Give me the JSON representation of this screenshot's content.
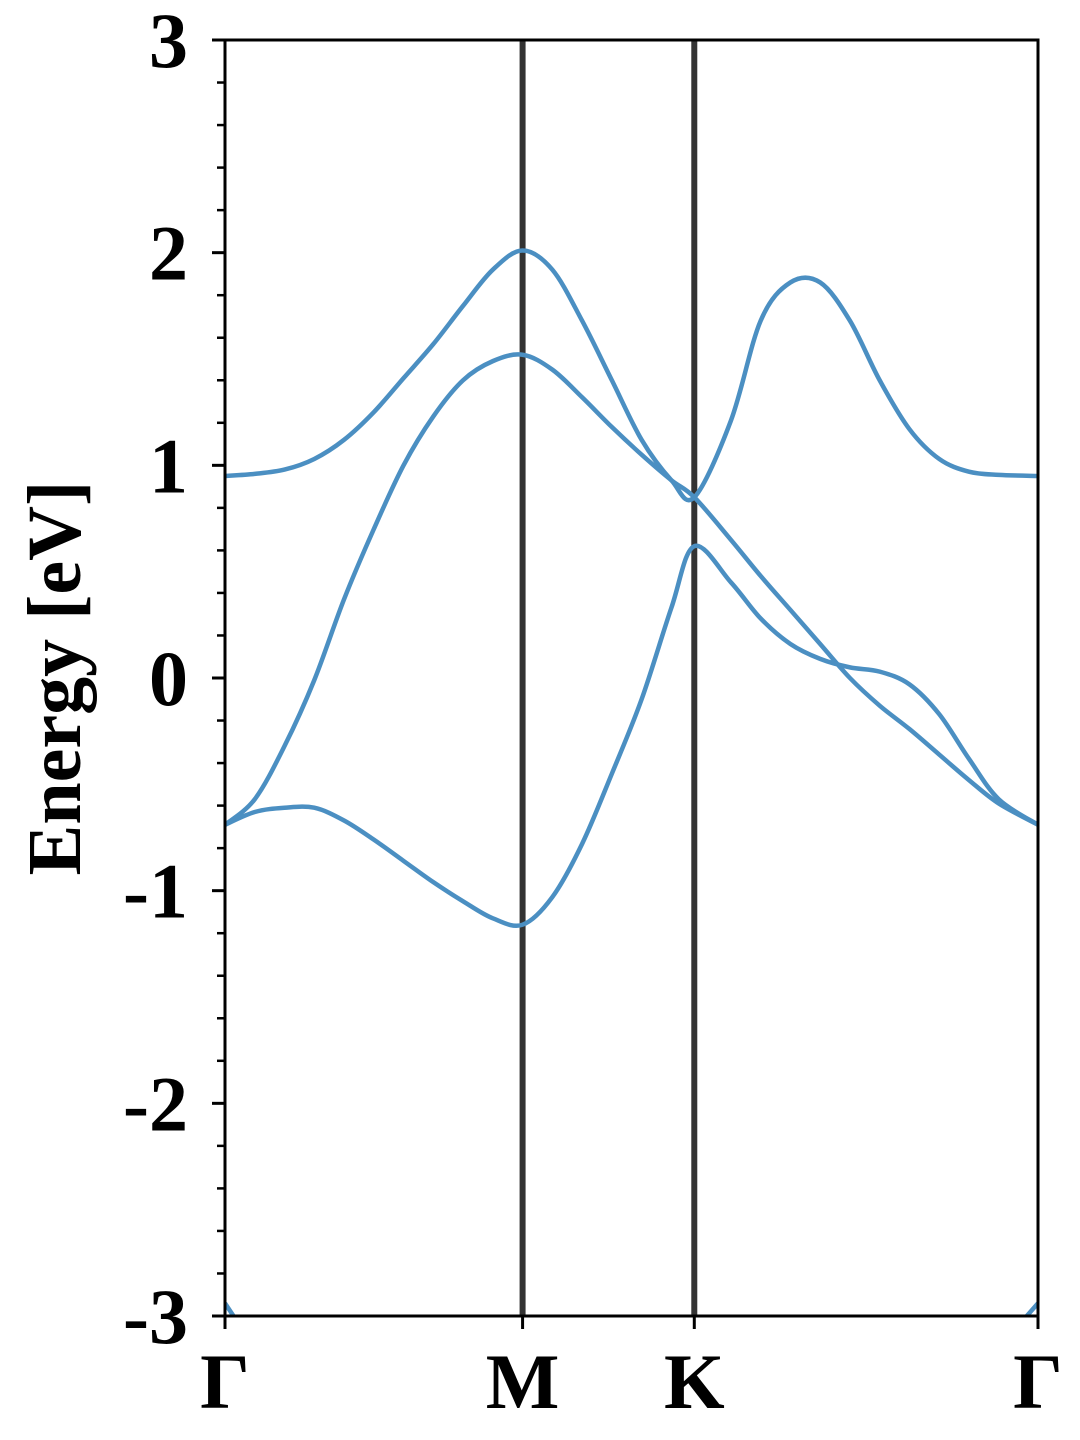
{
  "chart_data": {
    "type": "line",
    "ylabel": "Energy [eV]",
    "x": [
      0,
      0.1,
      0.2,
      0.3,
      0.4,
      0.5,
      0.6,
      0.7,
      0.8,
      0.9,
      1.0,
      1.1,
      1.2,
      1.3,
      1.4,
      1.5,
      1.577,
      1.7,
      1.8,
      1.9,
      2.0,
      2.1,
      2.2,
      2.3,
      2.4,
      2.5,
      2.6,
      2.732
    ],
    "series": [
      {
        "color": "#4b8fc2",
        "values": [
          0.95,
          0.96,
          0.98,
          1.03,
          1.12,
          1.25,
          1.41,
          1.57,
          1.75,
          1.92,
          2.01,
          1.92,
          1.68,
          1.4,
          1.12,
          0.93,
          0.85,
          1.21,
          1.68,
          1.86,
          1.86,
          1.68,
          1.4,
          1.17,
          1.03,
          0.97,
          0.955,
          0.95
        ]
      },
      {
        "color": "#4b8fc2",
        "values": [
          -0.69,
          -0.57,
          -0.32,
          -0.01,
          0.37,
          0.7,
          1.0,
          1.23,
          1.4,
          1.49,
          1.52,
          1.45,
          1.32,
          1.18,
          1.05,
          0.93,
          0.85,
          0.65,
          0.48,
          0.32,
          0.16,
          0.0,
          -0.13,
          -0.24,
          -0.36,
          -0.48,
          -0.59,
          -0.69
        ]
      },
      {
        "color": "#4b8fc2",
        "values": [
          -0.69,
          -0.63,
          -0.61,
          -0.61,
          -0.67,
          -0.76,
          -0.86,
          -0.96,
          -1.05,
          -1.13,
          -1.16,
          -1.03,
          -0.78,
          -0.45,
          -0.1,
          0.33,
          0.62,
          0.45,
          0.28,
          0.16,
          0.09,
          0.05,
          0.03,
          -0.03,
          -0.17,
          -0.38,
          -0.57,
          -0.69
        ]
      },
      {
        "color": "#4b8fc2",
        "values": [
          -2.94,
          -3.15,
          null,
          null,
          null,
          null,
          null,
          null,
          null,
          null,
          null,
          null,
          null,
          null,
          null,
          null,
          null,
          null,
          null,
          null,
          null,
          null,
          null,
          null,
          null,
          null,
          -3.15,
          -2.94
        ]
      }
    ],
    "xlim": [
      0,
      2.732
    ],
    "xticks": [
      {
        "value": 0,
        "label": "Γ"
      },
      {
        "value": 1.0,
        "label": "M"
      },
      {
        "value": 1.577,
        "label": "K"
      },
      {
        "value": 2.732,
        "label": "Γ"
      }
    ],
    "xgrid_color": "#333333",
    "ylim": [
      -3,
      3
    ],
    "yticks": [
      -3,
      -2,
      -1,
      0,
      1,
      2,
      3
    ],
    "yminorticks": [
      -2.8,
      -2.6,
      -2.4,
      -2.2,
      -1.8,
      -1.6,
      -1.4,
      -1.2,
      -0.8,
      -0.6,
      -0.4,
      -0.2,
      0.2,
      0.4,
      0.6,
      0.8,
      1.2,
      1.4,
      1.6,
      1.8,
      2.2,
      2.4,
      2.6,
      2.8
    ]
  }
}
